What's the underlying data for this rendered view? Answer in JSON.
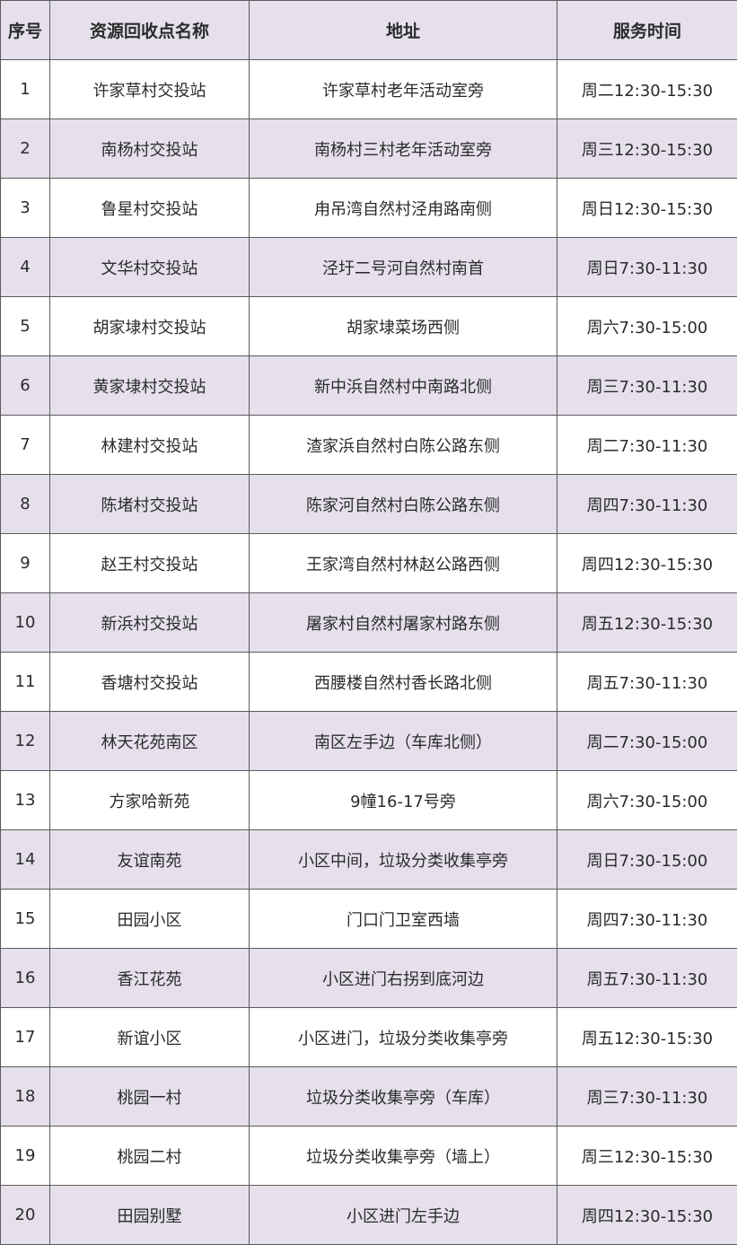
{
  "headers": [
    "序号",
    "资源回收点名称",
    "地址",
    "服务时间"
  ],
  "colors": {
    "header_bg": "#e5e0ec",
    "alt_row_bg": "#e5e0ec",
    "border": "#5a5a5a"
  },
  "rows": [
    [
      "1",
      "许家草村交投站",
      "许家草村老年活动室旁",
      "周二12:30-15:30"
    ],
    [
      "2",
      "南杨村交投站",
      "南杨村三村老年活动室旁",
      "周三12:30-15:30"
    ],
    [
      "3",
      "鲁星村交投站",
      "甪吊湾自然村泾甪路南侧",
      "周日12:30-15:30"
    ],
    [
      "4",
      "文华村交投站",
      "泾圩二号河自然村南首",
      "周日7:30-11:30"
    ],
    [
      "5",
      "胡家埭村交投站",
      "胡家埭菜场西侧",
      "周六7:30-15:00"
    ],
    [
      "6",
      "黄家埭村交投站",
      "新中浜自然村中南路北侧",
      "周三7:30-11:30"
    ],
    [
      "7",
      "林建村交投站",
      "渣家浜自然村白陈公路东侧",
      "周二7:30-11:30"
    ],
    [
      "8",
      "陈堵村交投站",
      "陈家河自然村白陈公路东侧",
      "周四7:30-11:30"
    ],
    [
      "9",
      "赵王村交投站",
      "王家湾自然村林赵公路西侧",
      "周四12:30-15:30"
    ],
    [
      "10",
      "新浜村交投站",
      "屠家村自然村屠家村路东侧",
      "周五12:30-15:30"
    ],
    [
      "11",
      "香塘村交投站",
      "西腰楼自然村香长路北侧",
      "周五7:30-11:30"
    ],
    [
      "12",
      "林天花苑南区",
      "南区左手边（车库北侧）",
      "周二7:30-15:00"
    ],
    [
      "13",
      "方家哈新苑",
      "9幢16-17号旁",
      "周六7:30-15:00"
    ],
    [
      "14",
      "友谊南苑",
      "小区中间，垃圾分类收集亭旁",
      "周日7:30-15:00"
    ],
    [
      "15",
      "田园小区",
      "门口门卫室西墙",
      "周四7:30-11:30"
    ],
    [
      "16",
      "香江花苑",
      "小区进门右拐到底河边",
      "周五7:30-11:30"
    ],
    [
      "17",
      "新谊小区",
      "小区进门，垃圾分类收集亭旁",
      "周五12:30-15:30"
    ],
    [
      "18",
      "桃园一村",
      "垃圾分类收集亭旁（车库）",
      "周三7:30-11:30"
    ],
    [
      "19",
      "桃园二村",
      "垃圾分类收集亭旁（墙上）",
      "周三12:30-15:30"
    ],
    [
      "20",
      "田园别墅",
      "小区进门左手边",
      "周四12:30-15:30"
    ]
  ]
}
